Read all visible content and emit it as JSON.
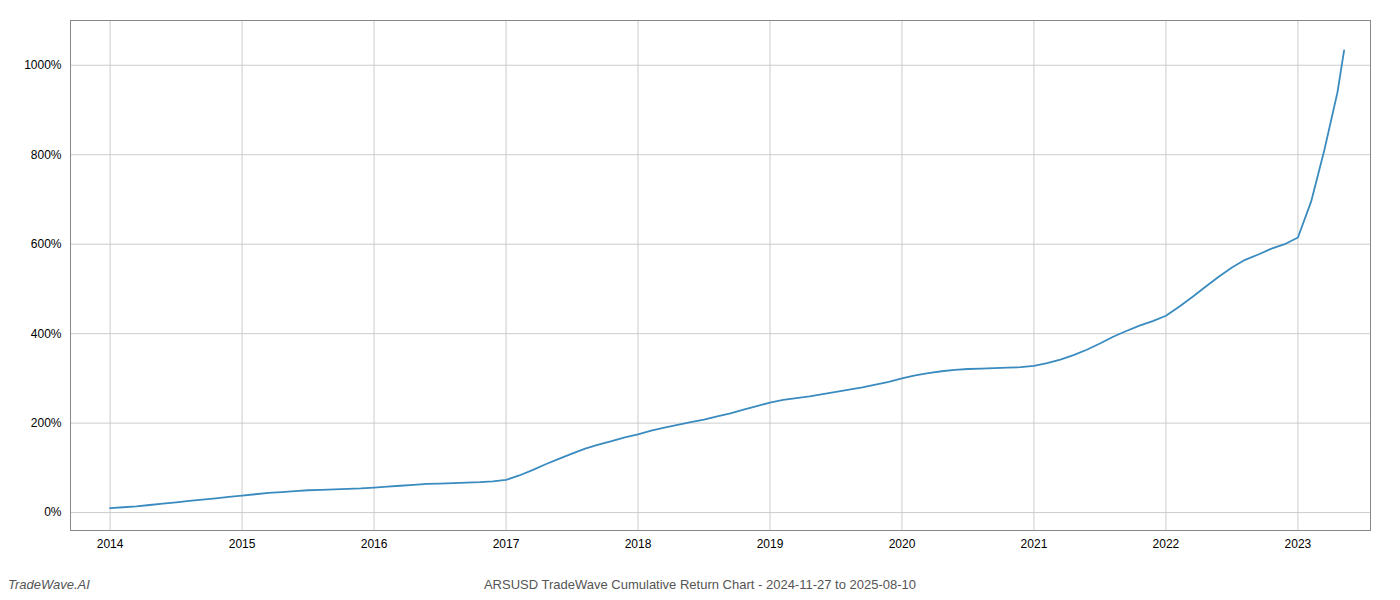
{
  "chart_data": {
    "type": "line",
    "title": "ARSUSD TradeWave Cumulative Return Chart - 2024-11-27 to 2025-08-10",
    "annotations": [
      "TradeWave.AI"
    ],
    "color": "#3a8bbf",
    "grid": true,
    "xlim": [
      2013.7,
      2023.55
    ],
    "xticks": [
      2014,
      2015,
      2016,
      2017,
      2018,
      2019,
      2020,
      2021,
      2022,
      2023
    ],
    "ylim": [
      -40,
      1100
    ],
    "yticks": [
      {
        "value": 0,
        "label": "0%"
      },
      {
        "value": 200,
        "label": "200%"
      },
      {
        "value": 400,
        "label": "400%"
      },
      {
        "value": 600,
        "label": "600%"
      },
      {
        "value": 800,
        "label": "800%"
      },
      {
        "value": 1000,
        "label": "1000%"
      }
    ],
    "x": [
      2014.0,
      2014.1,
      2014.2,
      2014.3,
      2014.4,
      2014.5,
      2014.6,
      2014.7,
      2014.8,
      2014.9,
      2015.0,
      2015.1,
      2015.2,
      2015.3,
      2015.4,
      2015.5,
      2015.6,
      2015.7,
      2015.8,
      2015.9,
      2016.0,
      2016.1,
      2016.2,
      2016.3,
      2016.4,
      2016.5,
      2016.6,
      2016.7,
      2016.8,
      2016.9,
      2017.0,
      2017.1,
      2017.2,
      2017.3,
      2017.4,
      2017.5,
      2017.6,
      2017.7,
      2017.8,
      2017.9,
      2018.0,
      2018.1,
      2018.2,
      2018.3,
      2018.4,
      2018.5,
      2018.6,
      2018.7,
      2018.8,
      2018.9,
      2019.0,
      2019.1,
      2019.2,
      2019.3,
      2019.4,
      2019.5,
      2019.6,
      2019.7,
      2019.8,
      2019.9,
      2020.0,
      2020.1,
      2020.2,
      2020.3,
      2020.4,
      2020.5,
      2020.6,
      2020.7,
      2020.8,
      2020.9,
      2021.0,
      2021.1,
      2021.2,
      2021.3,
      2021.4,
      2021.5,
      2021.6,
      2021.7,
      2021.8,
      2021.9,
      2022.0,
      2022.1,
      2022.2,
      2022.3,
      2022.4,
      2022.5,
      2022.6,
      2022.7,
      2022.8,
      2022.9,
      2023.0,
      2023.1,
      2023.2,
      2023.3,
      2023.35
    ],
    "values": [
      10,
      12,
      14,
      17,
      20,
      23,
      26,
      29,
      32,
      35,
      38,
      41,
      44,
      46,
      48,
      50,
      51,
      52,
      53,
      54,
      56,
      58,
      60,
      62,
      64,
      65,
      66,
      67,
      68,
      70,
      73,
      83,
      95,
      108,
      120,
      132,
      143,
      152,
      160,
      168,
      175,
      183,
      190,
      196,
      202,
      208,
      215,
      222,
      230,
      238,
      246,
      252,
      256,
      260,
      265,
      270,
      275,
      280,
      286,
      292,
      300,
      307,
      312,
      316,
      319,
      321,
      322,
      323,
      324,
      325,
      328,
      334,
      342,
      352,
      364,
      378,
      393,
      406,
      418,
      428,
      440,
      460,
      482,
      505,
      527,
      548,
      565,
      577,
      590,
      600,
      615,
      695,
      810,
      940,
      1033
    ]
  }
}
